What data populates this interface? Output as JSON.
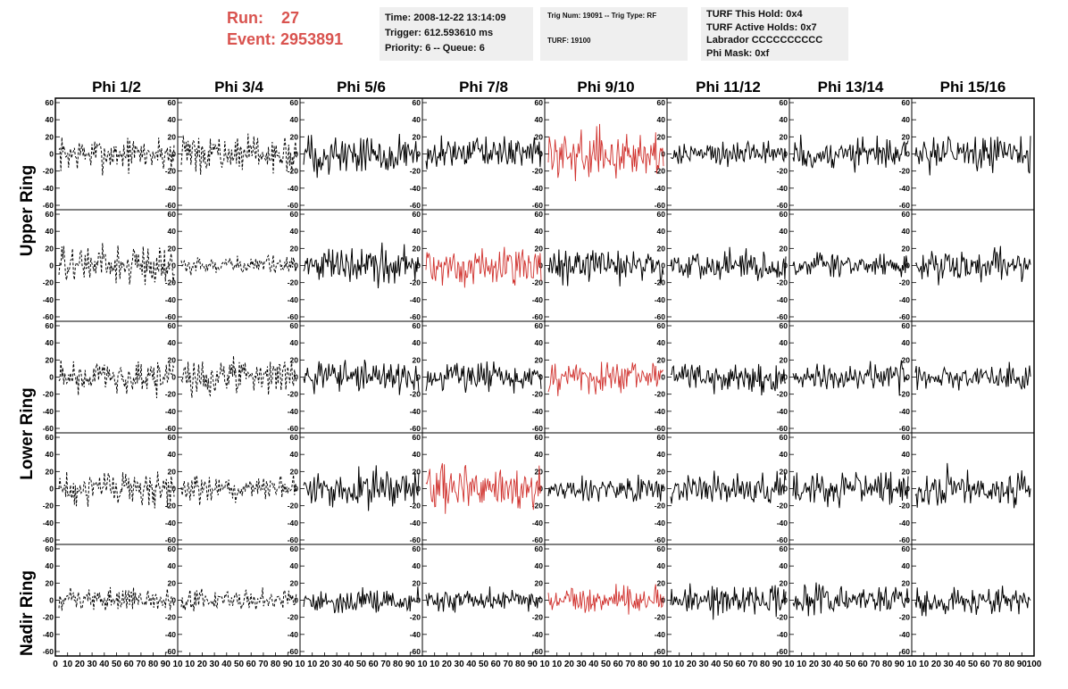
{
  "header": {
    "run_label": "Run:",
    "run_value": "27",
    "event_label": "Event:",
    "event_value": "2953891"
  },
  "time_box": {
    "time": "Time: 2008-12-22 13:14:09",
    "trigger": "Trigger: 612.593610 ms",
    "priority": "Priority: 6 -- Queue: 6"
  },
  "trig_box": {
    "trig": "Trig Num: 19091 -- Trig Type: RF",
    "turf": "TURF: 19100"
  },
  "turf_box": {
    "hold": "TURF This Hold: 0x4",
    "active": "TURF Active Holds: 0x7",
    "labrador": "Labrador CCCCCCCCCC",
    "phi_mask": "Phi Mask: 0xf"
  },
  "ring_labels": [
    "Upper Ring",
    "Lower Ring",
    "Nadir Ring"
  ],
  "chart_data": {
    "type": "line",
    "columns": [
      "Phi 1/2",
      "Phi 3/4",
      "Phi 5/6",
      "Phi 7/8",
      "Phi 9/10",
      "Phi 11/12",
      "Phi 13/14",
      "Phi 15/16"
    ],
    "rows": 5,
    "ylim": [
      -60,
      60
    ],
    "yticks": [
      -60,
      -40,
      -20,
      0,
      20,
      40,
      60
    ],
    "xlim": [
      0,
      100
    ],
    "xticks": [
      0,
      10,
      20,
      30,
      40,
      50,
      60,
      70,
      80,
      90,
      100
    ],
    "x_ticklabels_row": [
      "0",
      "10",
      "20",
      "30",
      "40",
      "50",
      "60",
      "70",
      "80",
      "90",
      "10",
      "10",
      "20",
      "30",
      "40",
      "50",
      "60",
      "70",
      "80",
      "90",
      "10",
      "10",
      "20",
      "30",
      "40",
      "50",
      "60",
      "70",
      "80",
      "90",
      "10",
      "10",
      "20",
      "30",
      "40",
      "50",
      "60",
      "70",
      "80",
      "90",
      "10",
      "10",
      "20",
      "30",
      "40",
      "50",
      "60",
      "70",
      "80",
      "90",
      "10",
      "10",
      "20",
      "30",
      "40",
      "50",
      "60",
      "70",
      "80",
      "90",
      "10",
      "10",
      "20",
      "30",
      "40",
      "50",
      "60",
      "70",
      "80",
      "90",
      "10",
      "10",
      "20",
      "30",
      "40",
      "50",
      "60",
      "70",
      "80",
      "90",
      "100"
    ],
    "samples_per_trace": 120,
    "colors": {
      "normal": "#000000",
      "triggered": "#d0312d",
      "accent": "#d9534f"
    },
    "dashed_columns": [
      0,
      1
    ],
    "highlight": [
      [
        0,
        4
      ],
      [
        1,
        3
      ],
      [
        2,
        4
      ],
      [
        3,
        3
      ],
      [
        4,
        4
      ]
    ],
    "noise_amplitude": {
      "row0": [
        14,
        14,
        16,
        12,
        18,
        10,
        13,
        14
      ],
      "row1": [
        16,
        7,
        15,
        16,
        13,
        12,
        11,
        13
      ],
      "row2": [
        14,
        14,
        12,
        12,
        14,
        12,
        11,
        10
      ],
      "row3": [
        14,
        11,
        14,
        18,
        10,
        12,
        13,
        15
      ],
      "row4": [
        9,
        9,
        10,
        9,
        10,
        13,
        11,
        11
      ]
    }
  }
}
